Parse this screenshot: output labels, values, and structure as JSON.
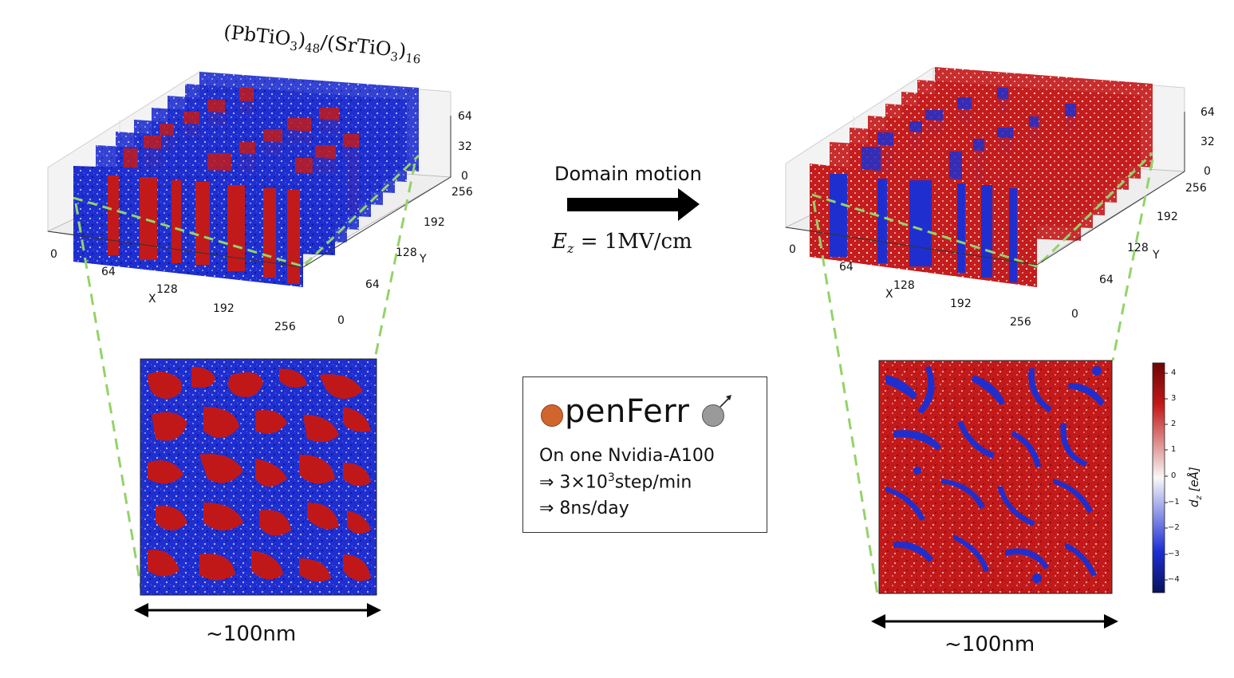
{
  "title_formula": {
    "a": "(PbTiO",
    "a_sub": "3",
    "a_close": ")",
    "a_n": "48",
    "slash": "/",
    "b": "(SrTiO",
    "b_sub": "3",
    "b_close": ")",
    "b_n": "16"
  },
  "arrow": {
    "label": "Domain motion",
    "field_lhs": "E",
    "field_sub": "z",
    "field_rhs": "= 1MV/cm"
  },
  "axes": {
    "x_label": "X",
    "y_label": "Y",
    "x_ticks": [
      "0",
      "64",
      "128",
      "192",
      "256"
    ],
    "y_ticks": [
      "0",
      "64",
      "128",
      "192",
      "256"
    ],
    "z_ticks": [
      "0",
      "32",
      "64"
    ]
  },
  "info_box": {
    "logo_text": "penFerr",
    "line1": "On one Nvidia-A100",
    "line2_prefix": "⇒ 3×10",
    "line2_sup": "3",
    "line2_suffix": "step/min",
    "line3": "⇒ 8ns/day"
  },
  "scale": {
    "left_label": "~100nm",
    "right_label": "~100nm"
  },
  "colorbar": {
    "label": "d",
    "label_sub": "z",
    "label_unit": "[eÅ]",
    "ticks": [
      "4",
      "3",
      "2",
      "1",
      "0",
      "−1",
      "−2",
      "−3",
      "−4"
    ],
    "range": [
      -4.5,
      4.5
    ],
    "colors": {
      "low": "#0a1f8f",
      "mid": "#ffffff",
      "high": "#9e0a0a"
    }
  },
  "colors": {
    "red_domain": "#c01818",
    "blue_domain": "#1a2ad0",
    "dashed_guide": "#93d36a",
    "logo_orange": "#d0652e",
    "logo_gray": "#9a9a9a"
  }
}
